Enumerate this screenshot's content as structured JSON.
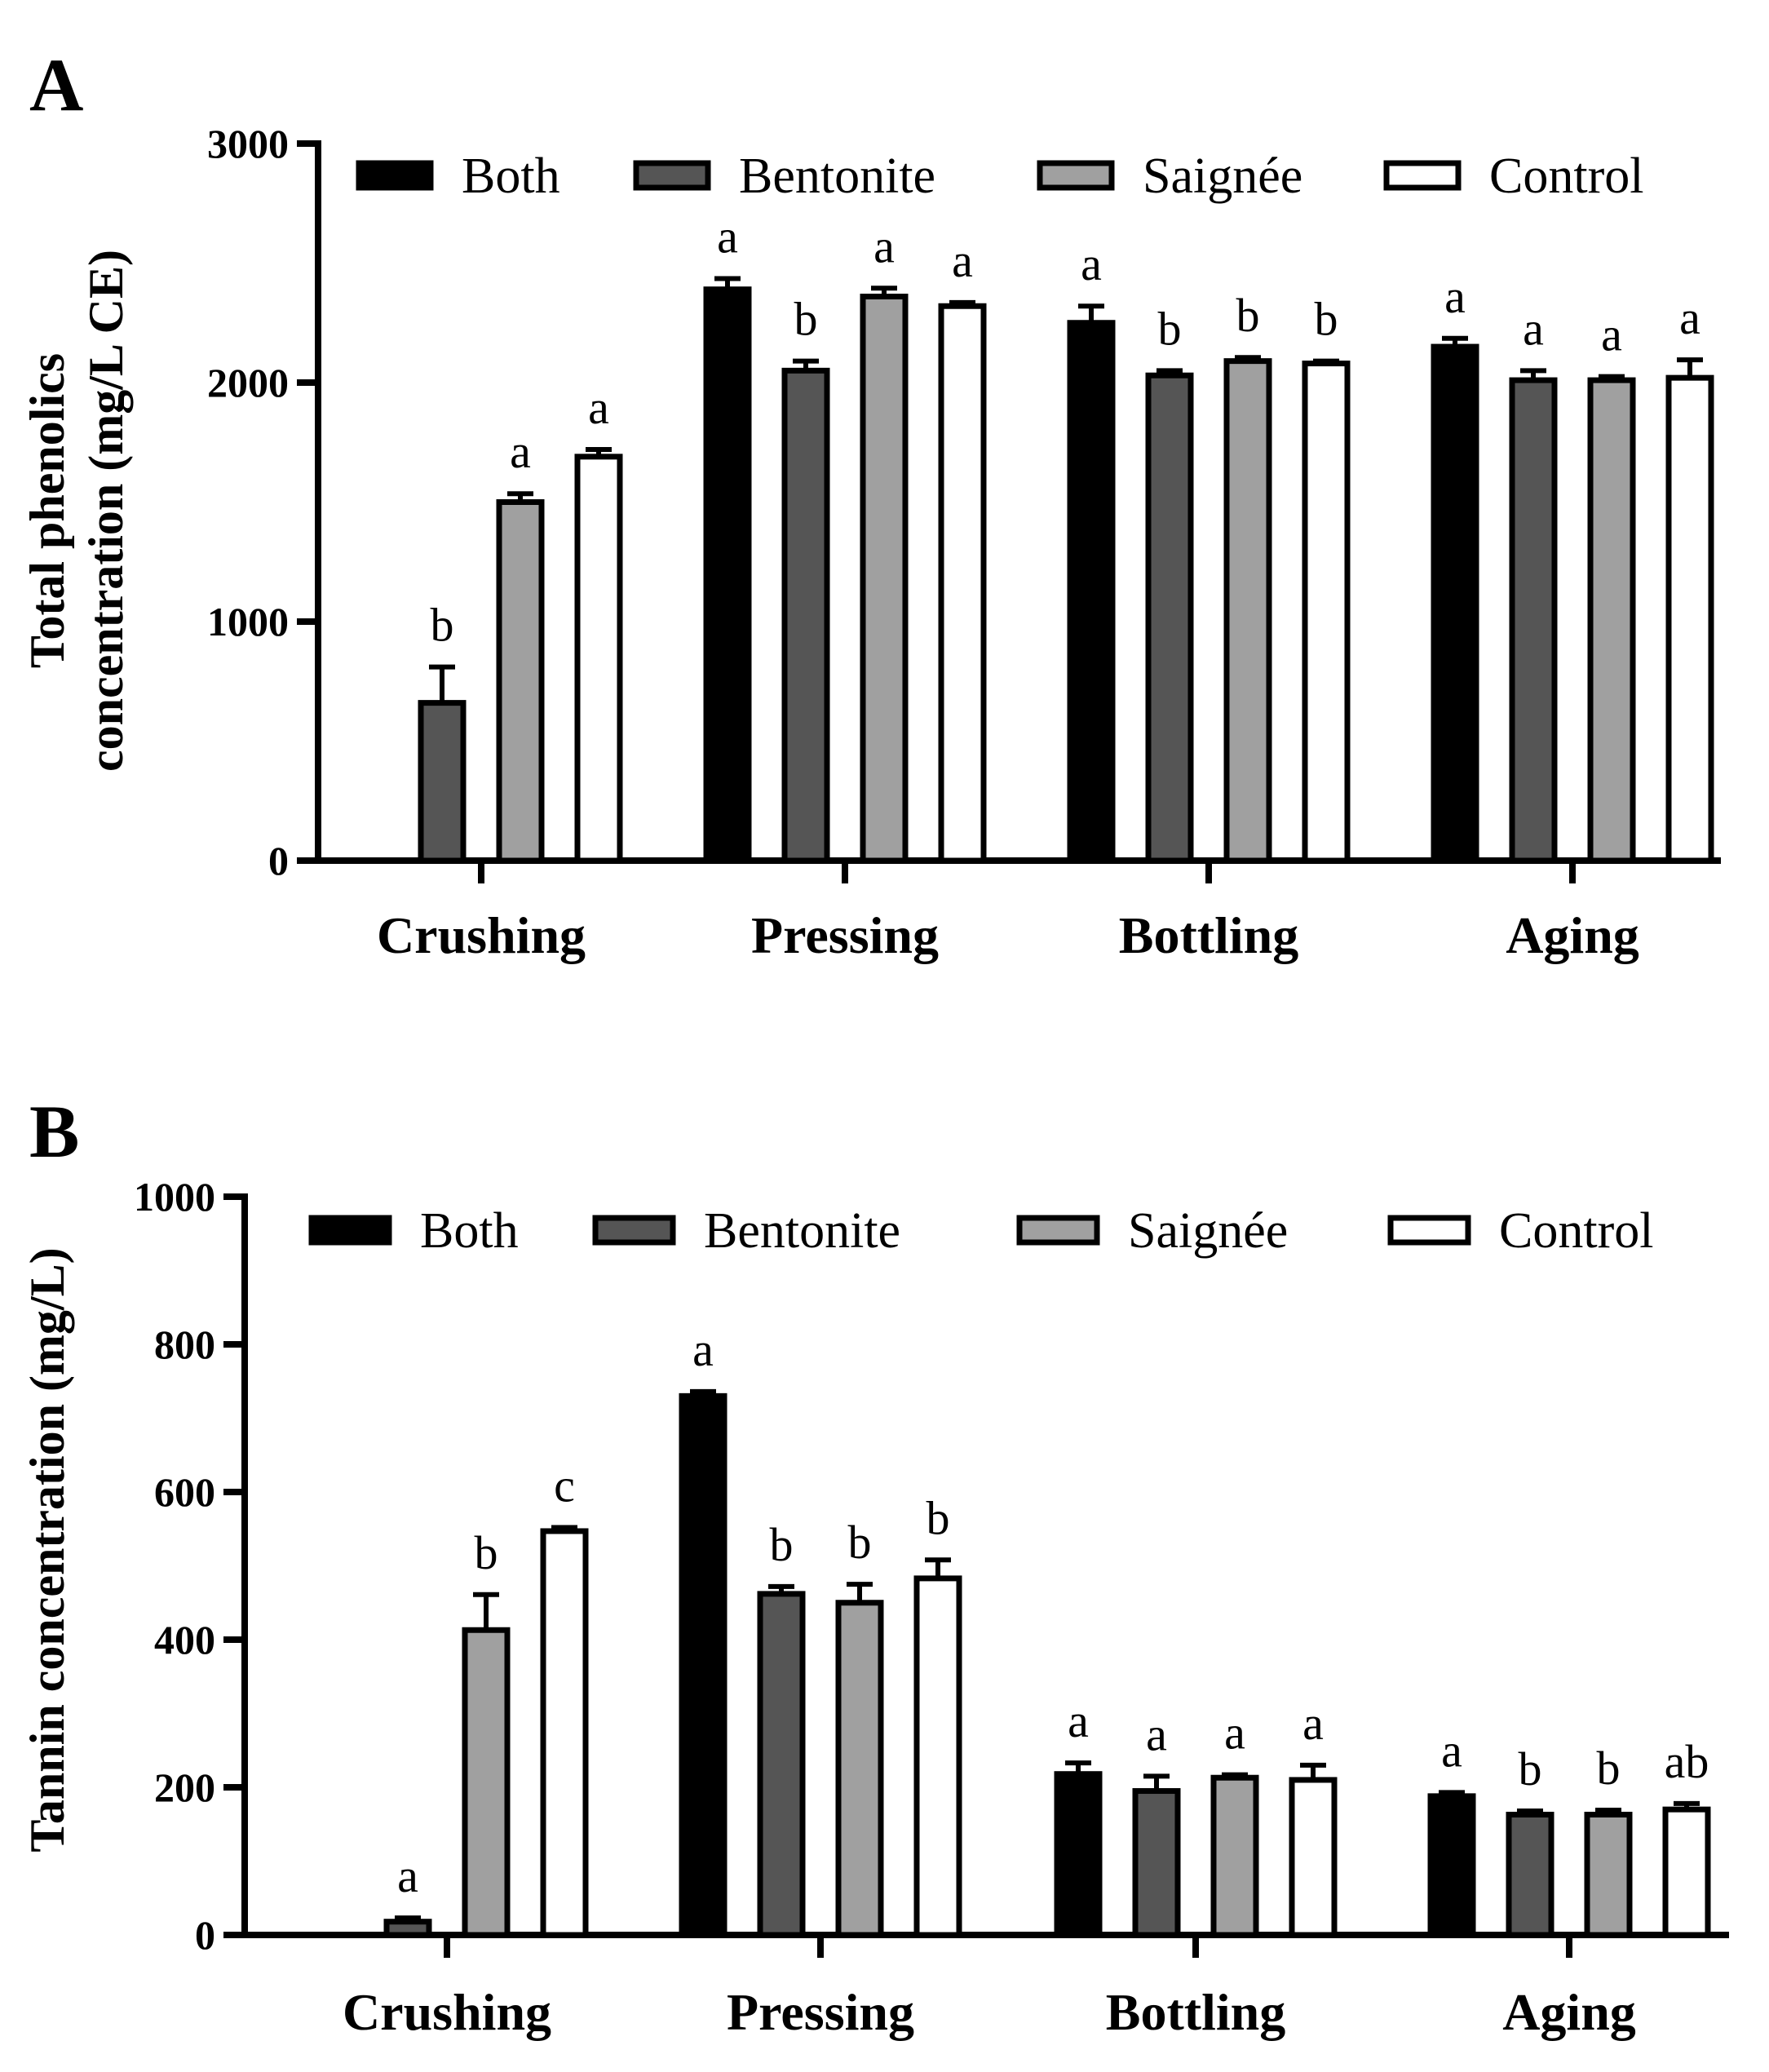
{
  "chart_data": [
    {
      "panel": "A",
      "type": "bar",
      "title": "",
      "ylabel_lines": [
        "Total phenolics",
        "concentration (mg/L CE)"
      ],
      "xlabel": "",
      "ylim": [
        0,
        3000
      ],
      "yticks": [
        "0",
        "1000",
        "2000",
        "3000"
      ],
      "ytick_values": [
        0,
        1000,
        2000,
        3000
      ],
      "categories": [
        "Crushing",
        "Pressing",
        "Bottling",
        "Aging"
      ],
      "series": [
        {
          "name": "Both",
          "color": "#000000",
          "values": [
            0,
            2390,
            2250,
            2150
          ],
          "errors": [
            0,
            45,
            70,
            35
          ]
        },
        {
          "name": "Bentonite",
          "color": "#555555",
          "values": [
            660,
            2050,
            2030,
            2010
          ],
          "errors": [
            150,
            40,
            20,
            40
          ]
        },
        {
          "name": "Saignée",
          "color": "#a0a0a0",
          "values": [
            1500,
            2360,
            2090,
            2010
          ],
          "errors": [
            35,
            35,
            15,
            15
          ]
        },
        {
          "name": "Control",
          "color": "#ffffff",
          "values": [
            1690,
            2320,
            2080,
            2020
          ],
          "errors": [
            30,
            15,
            10,
            75
          ]
        }
      ],
      "significance": [
        [
          "",
          "a",
          "a",
          "a"
        ],
        [
          "b",
          "b",
          "b",
          "a"
        ],
        [
          "a",
          "a",
          "b",
          "a"
        ],
        [
          "a",
          "a",
          "b",
          "a"
        ]
      ],
      "legend": [
        "Both",
        "Bentonite",
        "Saignée",
        "Control"
      ],
      "legend_position": "top"
    },
    {
      "panel": "B",
      "type": "bar",
      "title": "",
      "ylabel_lines": [
        "Tannin concentration (mg/L)"
      ],
      "xlabel": "",
      "ylim": [
        0,
        1000
      ],
      "yticks": [
        "0",
        "200",
        "400",
        "600",
        "800",
        "1000"
      ],
      "ytick_values": [
        0,
        200,
        400,
        600,
        800,
        1000
      ],
      "categories": [
        "Crushing",
        "Pressing",
        "Bottling",
        "Aging"
      ],
      "series": [
        {
          "name": "Both",
          "color": "#000000",
          "values": [
            0,
            730,
            218,
            188
          ],
          "errors": [
            0,
            6,
            15,
            5
          ]
        },
        {
          "name": "Bentonite",
          "color": "#555555",
          "values": [
            18,
            462,
            195,
            163
          ],
          "errors": [
            5,
            10,
            20,
            5
          ]
        },
        {
          "name": "Saignée",
          "color": "#a0a0a0",
          "values": [
            413,
            450,
            213,
            163
          ],
          "errors": [
            48,
            25,
            4,
            6
          ]
        },
        {
          "name": "Control",
          "color": "#ffffff",
          "values": [
            547,
            483,
            210,
            170
          ],
          "errors": [
            5,
            25,
            20,
            8
          ]
        }
      ],
      "significance": [
        [
          "",
          "a",
          "a",
          "a"
        ],
        [
          "a",
          "b",
          "a",
          "b"
        ],
        [
          "b",
          "b",
          "a",
          "b"
        ],
        [
          "c",
          "b",
          "a",
          "ab"
        ]
      ],
      "legend": [
        "Both",
        "Bentonite",
        "Saignée",
        "Control"
      ],
      "legend_position": "top"
    }
  ]
}
